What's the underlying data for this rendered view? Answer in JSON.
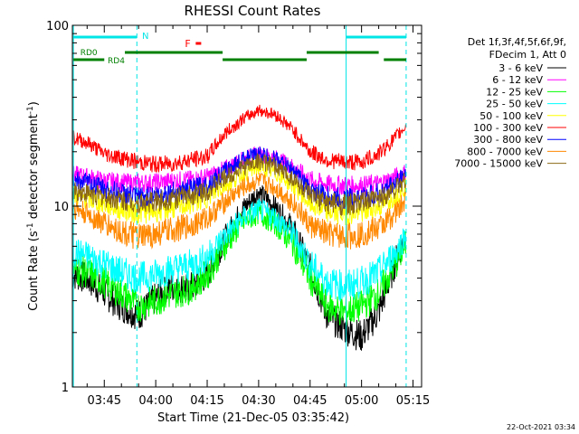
{
  "chart_data": {
    "type": "line",
    "title": "RHESSI Count Rates",
    "xlabel": "Start Time (21-Dec-05 03:35:42)",
    "ylabel": "Count Rate (s",
    "ylabel_sup": "-1",
    "ylabel_rest": " detector segment",
    "ylabel_sup2": "-1",
    "ylabel_end": ")",
    "x_scale": "time",
    "y_scale": "log",
    "xlim": [
      "03:35:42",
      "05:17:30"
    ],
    "ylim": [
      1,
      100
    ],
    "x_tick_labels": [
      "03:45",
      "04:00",
      "04:15",
      "04:30",
      "04:45",
      "05:00",
      "05:15"
    ],
    "x_tick_minutes": [
      225,
      240,
      255,
      270,
      285,
      300,
      315
    ],
    "y_tick_labels": [
      "1",
      "10",
      "100"
    ],
    "y_tick_values": [
      1,
      10,
      100
    ],
    "grid": false,
    "legend_position": "right",
    "legend_header": [
      "Det 1f,3f,4f,5f,6f,9f,",
      "FDecim 1, Att 0"
    ],
    "series": [
      {
        "name": "3 - 6 keV",
        "color": "#000000",
        "x": [
          215.7,
          220,
          225,
          230,
          235,
          240,
          245,
          250,
          255,
          260,
          265,
          270,
          275,
          280,
          285,
          290,
          295,
          300,
          305,
          310,
          313
        ],
        "y": [
          4.2,
          4.0,
          3.3,
          2.8,
          2.5,
          3.1,
          3.6,
          3.5,
          4.2,
          6.5,
          9.5,
          12.0,
          9.8,
          7.5,
          4.5,
          2.5,
          2.1,
          1.9,
          2.6,
          5.0,
          7.0
        ]
      },
      {
        "name": "6 - 12 keV",
        "color": "#ff00ff",
        "x": [
          215.7,
          220,
          225,
          230,
          235,
          240,
          245,
          250,
          255,
          260,
          265,
          270,
          275,
          280,
          285,
          290,
          295,
          300,
          305,
          310,
          313
        ],
        "y": [
          15.0,
          14.5,
          13.8,
          13.5,
          13.4,
          13.5,
          13.8,
          14.0,
          14.5,
          16.0,
          18.0,
          19.5,
          18.5,
          16.5,
          14.0,
          13.2,
          13.0,
          13.0,
          13.3,
          14.5,
          15.5
        ]
      },
      {
        "name": "12 - 25 keV",
        "color": "#00ff00",
        "x": [
          215.7,
          220,
          225,
          230,
          235,
          240,
          245,
          250,
          255,
          260,
          265,
          270,
          275,
          280,
          285,
          290,
          295,
          300,
          305,
          310,
          313
        ],
        "y": [
          4.5,
          4.3,
          3.8,
          3.3,
          2.8,
          3.0,
          3.3,
          3.5,
          4.2,
          6.0,
          8.0,
          9.2,
          8.0,
          6.2,
          4.0,
          2.8,
          2.6,
          2.8,
          3.3,
          4.8,
          6.2
        ]
      },
      {
        "name": "25 - 50 keV",
        "color": "#00ffff",
        "x": [
          215.7,
          220,
          225,
          230,
          235,
          240,
          245,
          250,
          255,
          260,
          265,
          270,
          275,
          280,
          285,
          290,
          295,
          300,
          305,
          310,
          313
        ],
        "y": [
          5.6,
          5.3,
          4.8,
          4.3,
          4.0,
          4.2,
          4.5,
          4.7,
          5.2,
          6.8,
          8.5,
          9.6,
          8.6,
          7.0,
          4.8,
          3.8,
          3.6,
          3.8,
          4.3,
          5.6,
          7.0
        ]
      },
      {
        "name": "50 - 100 keV",
        "color": "#ffff00",
        "x": [
          215.7,
          220,
          225,
          230,
          235,
          240,
          245,
          250,
          255,
          260,
          265,
          270,
          275,
          280,
          285,
          290,
          295,
          300,
          305,
          310,
          313
        ],
        "y": [
          11.5,
          11.0,
          10.3,
          9.6,
          9.2,
          9.4,
          9.8,
          10.3,
          11.2,
          13.0,
          15.0,
          16.5,
          15.3,
          13.2,
          10.3,
          9.3,
          9.1,
          9.3,
          9.9,
          11.5,
          13.0
        ]
      },
      {
        "name": "100 - 300 keV",
        "color": "#ff0000",
        "x": [
          215.7,
          220,
          225,
          230,
          235,
          240,
          245,
          250,
          255,
          260,
          265,
          270,
          275,
          280,
          285,
          290,
          295,
          300,
          305,
          310,
          313
        ],
        "y": [
          24.0,
          22.5,
          19.5,
          18.5,
          17.5,
          17.0,
          17.2,
          18.0,
          18.8,
          25.0,
          30.0,
          34.0,
          32.0,
          26.5,
          20.0,
          18.0,
          17.5,
          17.5,
          19.5,
          24.0,
          28.0
        ]
      },
      {
        "name": "300 - 800 keV",
        "color": "#0000ff",
        "x": [
          215.7,
          220,
          225,
          230,
          235,
          240,
          245,
          250,
          255,
          260,
          265,
          270,
          275,
          280,
          285,
          290,
          295,
          300,
          305,
          310,
          313
        ],
        "y": [
          14.0,
          13.5,
          12.5,
          11.8,
          11.2,
          11.5,
          12.0,
          12.4,
          13.2,
          15.5,
          18.0,
          19.5,
          18.2,
          15.8,
          12.3,
          11.3,
          11.0,
          11.2,
          11.8,
          13.5,
          15.5
        ]
      },
      {
        "name": "800 - 7000 keV",
        "color": "#ff8800",
        "x": [
          215.7,
          220,
          225,
          230,
          235,
          240,
          245,
          250,
          255,
          260,
          265,
          270,
          275,
          280,
          285,
          290,
          295,
          300,
          305,
          310,
          313
        ],
        "y": [
          9.8,
          9.0,
          8.0,
          7.2,
          6.7,
          7.0,
          7.4,
          7.8,
          8.6,
          10.5,
          12.5,
          13.8,
          12.6,
          10.5,
          7.8,
          7.0,
          6.8,
          7.0,
          7.6,
          9.2,
          10.8
        ]
      },
      {
        "name": "7000 - 15000 keV",
        "color": "#8b6914",
        "x": [
          215.7,
          220,
          225,
          230,
          235,
          240,
          245,
          250,
          255,
          260,
          265,
          270,
          275,
          280,
          285,
          290,
          295,
          300,
          305,
          310,
          313
        ],
        "y": [
          12.2,
          11.8,
          11.2,
          10.8,
          10.4,
          10.6,
          11.0,
          11.4,
          12.2,
          14.2,
          16.3,
          17.8,
          16.5,
          14.2,
          11.3,
          10.4,
          10.2,
          10.4,
          11.0,
          12.6,
          14.2
        ]
      }
    ],
    "flags": {
      "night_lines": {
        "color": "#00e5e5",
        "x": [
          216,
          234.5,
          295.5,
          313
        ]
      },
      "saa_bars": {
        "color": "#00e5e5",
        "segments": [
          [
            216,
            234.5
          ],
          [
            295.5,
            313
          ]
        ],
        "label": "N",
        "label_x": 236
      },
      "attenuator_label": {
        "text": "F",
        "color": "#ff0000",
        "x": 248.5
      },
      "decimation_bars": {
        "color": "#008000",
        "upper": [
          [
            231,
            259.5
          ],
          [
            284,
            305
          ]
        ],
        "lower": [
          [
            216,
            225
          ],
          [
            259.5,
            284
          ],
          [
            306.5,
            313
          ]
        ],
        "labels": [
          {
            "text": "RD0",
            "x": 218
          },
          {
            "text": "RD4",
            "x": 226
          }
        ]
      }
    }
  },
  "timestamp": "22-Oct-2021 03:34"
}
